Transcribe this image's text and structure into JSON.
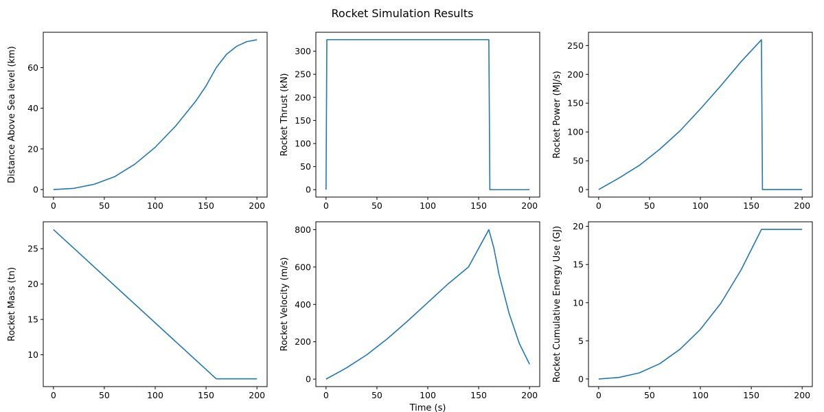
{
  "figure": {
    "title": "Rocket Simulation Results"
  },
  "colors": {
    "line": "#1f77b4"
  },
  "chart_data": [
    {
      "type": "line",
      "ylabel": "Distance Above Sea level (km)",
      "xlabel": "",
      "xlim": [
        -10,
        210
      ],
      "ylim": [
        -3.7,
        77.4
      ],
      "xticks": [
        0,
        50,
        100,
        150,
        200
      ],
      "yticks": [
        0,
        20,
        40,
        60
      ],
      "x": [
        0,
        20,
        40,
        60,
        80,
        100,
        120,
        140,
        150,
        160,
        170,
        180,
        190,
        200
      ],
      "y": [
        0,
        0.6,
        2.6,
        6.3,
        12.5,
        20.8,
        31.2,
        43.6,
        51.0,
        60.0,
        66.5,
        70.5,
        72.8,
        73.7
      ]
    },
    {
      "type": "line",
      "ylabel": "Rocket Thrust (kN)",
      "xlabel": "",
      "xlim": [
        -10,
        210
      ],
      "ylim": [
        -16,
        341
      ],
      "xticks": [
        0,
        50,
        100,
        150,
        200
      ],
      "yticks": [
        0,
        50,
        100,
        150,
        200,
        250,
        300
      ],
      "x": [
        0,
        0.8,
        160,
        161,
        200
      ],
      "y": [
        0,
        325,
        325,
        0,
        0
      ]
    },
    {
      "type": "line",
      "ylabel": "Rocket Power (MJ/s)",
      "xlabel": "",
      "xlim": [
        -10,
        210
      ],
      "ylim": [
        -13,
        273
      ],
      "xticks": [
        0,
        50,
        100,
        150,
        200
      ],
      "yticks": [
        0,
        50,
        100,
        150,
        200,
        250
      ],
      "x": [
        0,
        20,
        40,
        60,
        80,
        100,
        120,
        140,
        160,
        161,
        200
      ],
      "y": [
        0,
        20,
        42,
        70,
        102,
        140,
        180,
        222,
        260,
        0,
        0
      ]
    },
    {
      "type": "line",
      "ylabel": "Rocket Mass (tn)",
      "xlabel": "",
      "xlim": [
        -10,
        210
      ],
      "ylim": [
        5.5,
        28.8
      ],
      "xticks": [
        0,
        50,
        100,
        150,
        200
      ],
      "yticks": [
        10,
        15,
        20,
        25
      ],
      "x": [
        0,
        160,
        200
      ],
      "y": [
        27.7,
        6.6,
        6.6
      ]
    },
    {
      "type": "line",
      "ylabel": "Rocket Velocity (m/s)",
      "xlabel": "Time (s)",
      "xlim": [
        -10,
        210
      ],
      "ylim": [
        -40,
        842
      ],
      "xticks": [
        0,
        50,
        100,
        150,
        200
      ],
      "yticks": [
        0,
        200,
        400,
        600,
        800
      ],
      "x": [
        0,
        20,
        40,
        60,
        80,
        100,
        120,
        140,
        160,
        165,
        170,
        180,
        190,
        200
      ],
      "y": [
        0,
        60,
        130,
        215,
        310,
        410,
        510,
        600,
        800,
        700,
        560,
        350,
        190,
        80
      ]
    },
    {
      "type": "line",
      "ylabel": "Rocket Cumulative Energy Use (GJ)",
      "xlabel": "",
      "xlim": [
        -10,
        210
      ],
      "ylim": [
        -1,
        20.6
      ],
      "xticks": [
        0,
        50,
        100,
        150,
        200
      ],
      "yticks": [
        0,
        5,
        10,
        15,
        20
      ],
      "x": [
        0,
        20,
        40,
        60,
        80,
        100,
        120,
        140,
        160,
        200
      ],
      "y": [
        0,
        0.2,
        0.8,
        2.0,
        3.9,
        6.5,
        9.9,
        14.3,
        19.6,
        19.6
      ]
    }
  ]
}
